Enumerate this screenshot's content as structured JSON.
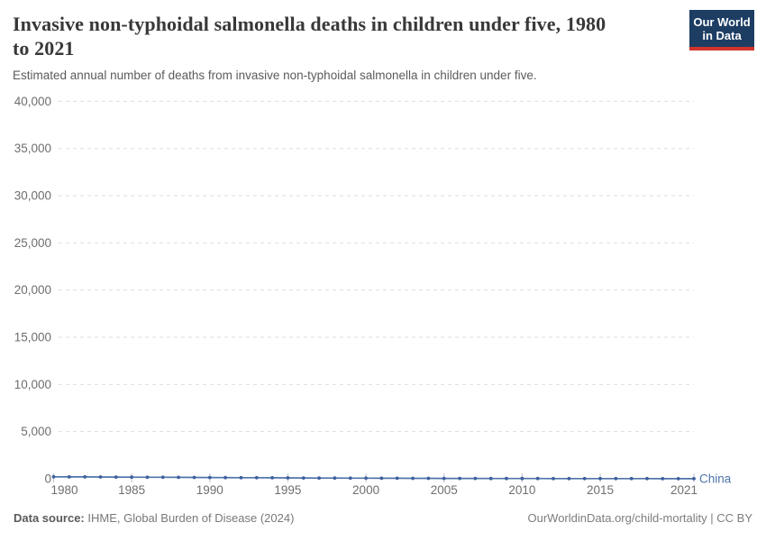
{
  "header": {
    "title": "Invasive non-typhoidal salmonella deaths in children under five, 1980 to 2021",
    "title_lines": [
      "Invasive non-typhoidal salmonella deaths in children under five, 1980",
      "to 2021"
    ],
    "subtitle": "Estimated annual number of deaths from invasive non-typhoidal salmonella in children under five.",
    "logo": {
      "line1": "Our World",
      "line2": "in Data",
      "bg_color": "#1d3d63",
      "stripe_color": "#d0342a"
    }
  },
  "chart_data": {
    "type": "line",
    "title": "Invasive non-typhoidal salmonella deaths in children under five, 1980 to 2021",
    "xlabel": "",
    "ylabel": "",
    "xlim": [
      1980,
      2021
    ],
    "ylim": [
      0,
      40000
    ],
    "x_ticks": [
      1980,
      1985,
      1990,
      1995,
      2000,
      2005,
      2010,
      2015,
      2021
    ],
    "y_ticks": [
      0,
      5000,
      10000,
      15000,
      20000,
      25000,
      30000,
      35000,
      40000
    ],
    "grid": "horizontal-dashed",
    "gridline_color": "#dedede",
    "tick_mark_color": "#b9c0ce",
    "legend": "end-of-line-label",
    "series": [
      {
        "name": "China",
        "color": "#4f74ab",
        "marker_color": "#3d5f9c",
        "x": [
          1980,
          1981,
          1982,
          1983,
          1984,
          1985,
          1986,
          1987,
          1988,
          1989,
          1990,
          1991,
          1992,
          1993,
          1994,
          1995,
          1996,
          1997,
          1998,
          1999,
          2000,
          2001,
          2002,
          2003,
          2004,
          2005,
          2006,
          2007,
          2008,
          2009,
          2010,
          2011,
          2012,
          2013,
          2014,
          2015,
          2016,
          2017,
          2018,
          2019,
          2020,
          2021
        ],
        "values": [
          210,
          205,
          198,
          190,
          182,
          174,
          166,
          158,
          150,
          142,
          134,
          126,
          118,
          110,
          102,
          95,
          88,
          81,
          75,
          69,
          63,
          58,
          53,
          48,
          44,
          40,
          37,
          34,
          31,
          28,
          26,
          24,
          22,
          20,
          19,
          18,
          17,
          16,
          15,
          14,
          13,
          12
        ]
      }
    ]
  },
  "footer": {
    "source_label": "Data source:",
    "source_text": " IHME, Global Burden of Disease (2024)",
    "credit": "OurWorldinData.org/child-mortality | CC BY"
  }
}
